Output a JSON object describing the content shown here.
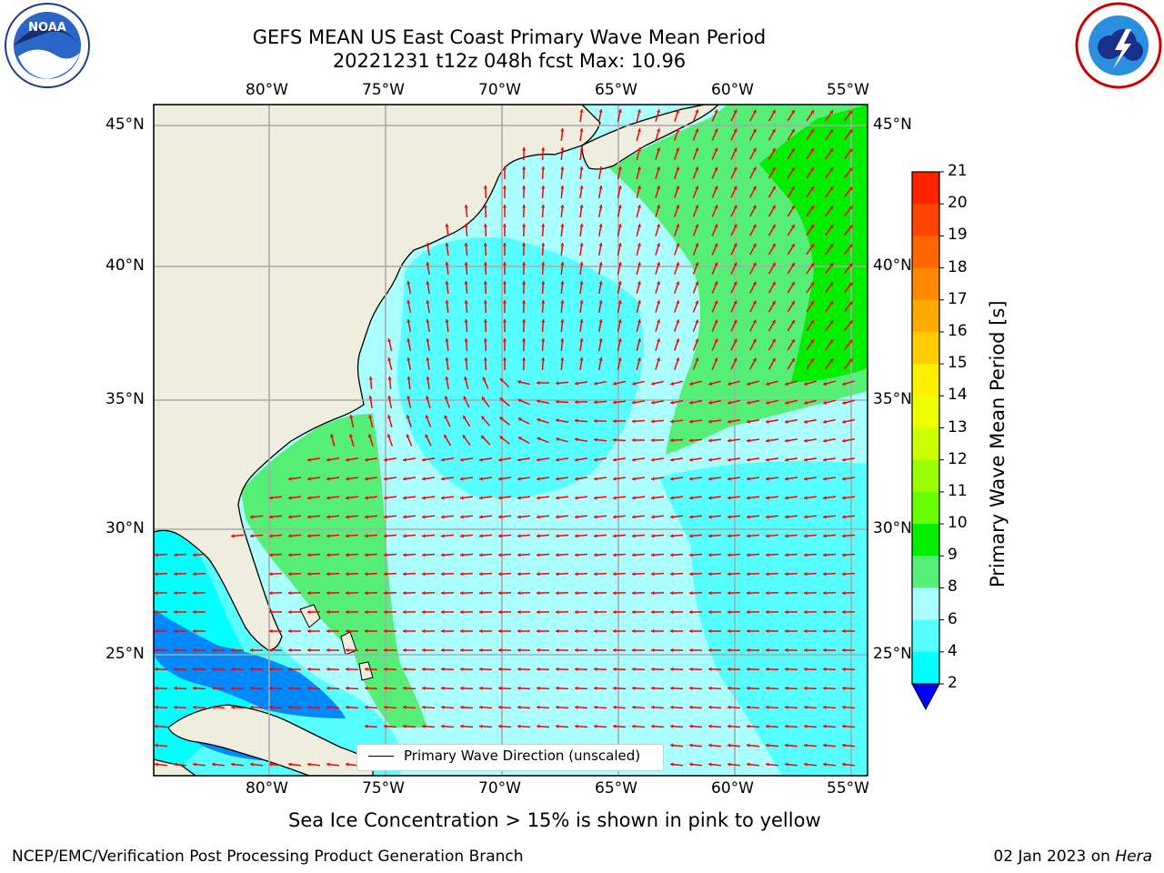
{
  "header": {
    "title_line1": "GEFS MEAN US East Coast Primary Wave Mean Period",
    "title_line2": "20221231 t12z 048h fcst   Max: 10.96"
  },
  "logos": {
    "left": {
      "name": "noaa-logo",
      "text": "NOAA",
      "ring_text": "NATIONAL OCEANIC AND ATMOSPHERIC ADMINISTRATION · U.S. DEPARTMENT OF COMMERCE"
    },
    "right": {
      "name": "nws-logo",
      "ring_text": "NATIONAL WEATHER SERVICE"
    }
  },
  "map": {
    "lon_labels": [
      "80°W",
      "75°W",
      "70°W",
      "65°W",
      "60°W",
      "55°W"
    ],
    "lat_labels": [
      "45°N",
      "40°N",
      "35°N",
      "30°N",
      "25°N"
    ],
    "legend_text": "Primary Wave Direction (unscaled)",
    "colors": {
      "land": "#efedde",
      "grid": "#aaaaaa",
      "arrows": "#ff0000",
      "coast": "#000000"
    }
  },
  "colorbar": {
    "title": "Primary Wave Mean Period [s]",
    "ticks": [
      "21",
      "20",
      "19",
      "18",
      "17",
      "16",
      "15",
      "14",
      "13",
      "12",
      "11",
      "10",
      "9",
      "8",
      "6",
      "4",
      "2"
    ],
    "colors": [
      "#ff0000",
      "#ff2200",
      "#ff4400",
      "#ff6600",
      "#ff8800",
      "#ffaa00",
      "#ffcc00",
      "#ffee00",
      "#eeff00",
      "#ccff00",
      "#99ff00",
      "#66ff00",
      "#00ee00",
      "#55ee77",
      "#aaffff",
      "#55ffff",
      "#00ffff",
      "#0088ff"
    ],
    "under_color": "#0000ff"
  },
  "notes": {
    "sea_ice": "Sea Ice Concentration > 15% is shown in pink to yellow"
  },
  "footer": {
    "left": "NCEP/EMC/Verification Post Processing Product Generation Branch",
    "right_prefix": "02 Jan 2023 on ",
    "right_host": "Hera"
  }
}
